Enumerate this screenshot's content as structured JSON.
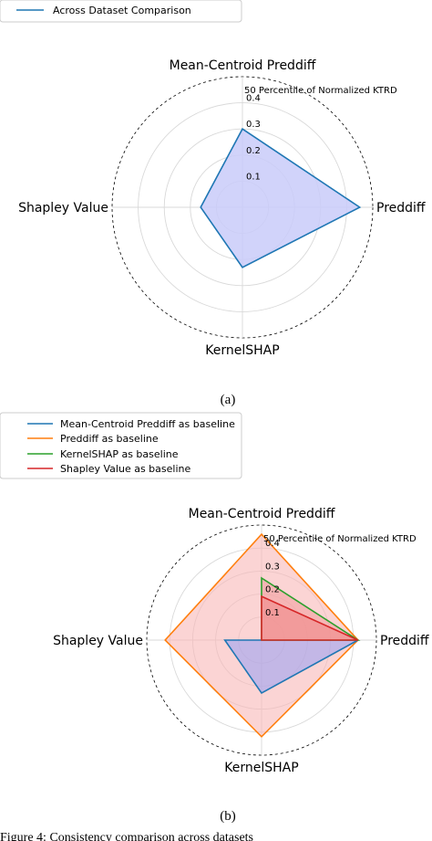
{
  "chart_data": [
    {
      "type": "radar",
      "caption": "(a)",
      "radial_title": "50 Percentile of Normalized KTRD",
      "axes": [
        "Mean-Centroid Preddiff",
        "Preddiff",
        "KernelSHAP",
        "Shapley Value"
      ],
      "rticks": [
        "0.1",
        "0.2",
        "0.3",
        "0.4"
      ],
      "rmax": 0.5,
      "legend_position": "top-left",
      "series": [
        {
          "name": "Across Dataset Comparison",
          "color": "#1f77b4",
          "fill": "#c9cbf9",
          "values": [
            0.3,
            0.45,
            0.23,
            0.16
          ]
        }
      ]
    },
    {
      "type": "radar",
      "caption": "(b)",
      "radial_title": "50 Percentile of Normalized KTRD",
      "axes": [
        "Mean-Centroid Preddiff",
        "Preddiff",
        "KernelSHAP",
        "Shapley Value"
      ],
      "rticks": [
        "0.1",
        "0.2",
        "0.3",
        "0.4"
      ],
      "rmax": 0.5,
      "legend_position": "top-left",
      "series": [
        {
          "name": "Mean-Centroid Preddiff as baseline",
          "color": "#1f77b4",
          "fill": "#9fa3f2",
          "values": [
            0.0,
            0.42,
            0.23,
            0.16
          ]
        },
        {
          "name": "Preddiff as baseline",
          "color": "#ff7f0e",
          "fill": "#f9b7b7",
          "values": [
            0.46,
            0.42,
            0.42,
            0.42
          ]
        },
        {
          "name": "KernelSHAP as baseline",
          "color": "#2ca02c",
          "fill": "#f4a0a0",
          "values": [
            0.27,
            0.42,
            0.0,
            0.0
          ]
        },
        {
          "name": "Shapley Value as baseline",
          "color": "#d62728",
          "fill": "#f08a8a",
          "values": [
            0.19,
            0.42,
            0.0,
            0.0
          ]
        }
      ]
    }
  ],
  "footer_text": "Figure 4: Consistency comparison across datasets"
}
